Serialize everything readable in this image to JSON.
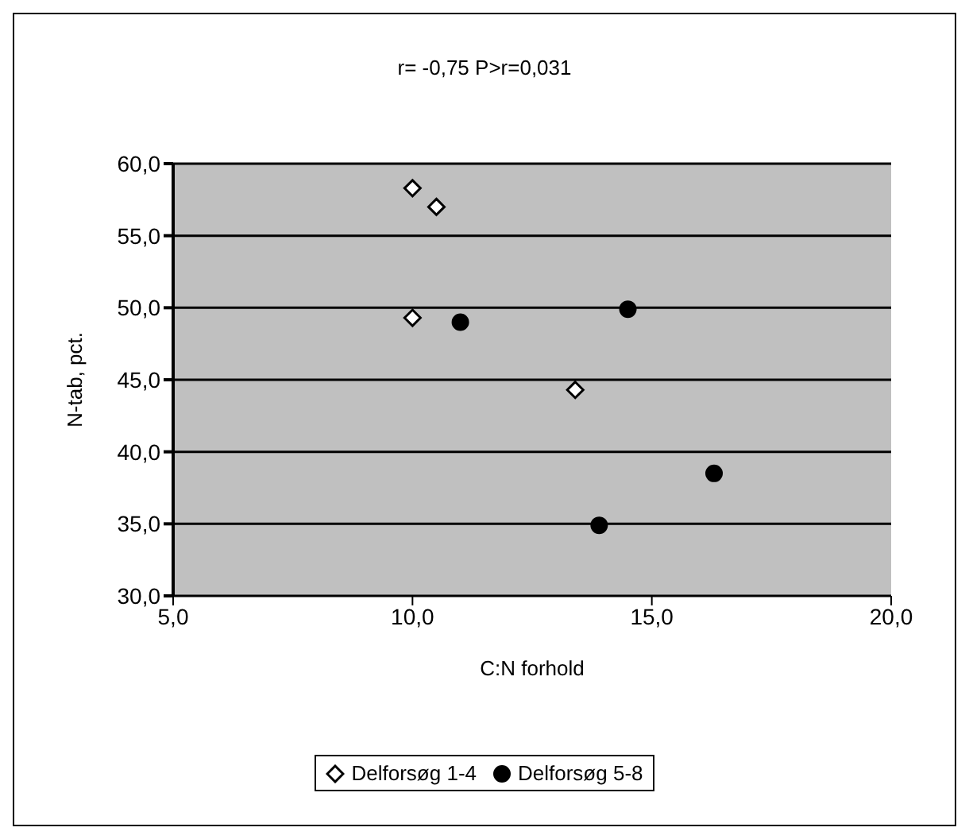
{
  "chart_data": {
    "type": "scatter",
    "title": "r= -0,75  P>r=0,031",
    "xlabel": "C:N forhold",
    "ylabel": "N-tab, pct.",
    "series": [
      {
        "name": "Delforsøg 1-4",
        "color": "#ffffff",
        "marker": "diamond",
        "x": [
          10.0,
          10.5,
          10.0,
          13.4
        ],
        "values": [
          58.3,
          57.0,
          49.3,
          44.3
        ]
      },
      {
        "name": "Delforsøg 5-8",
        "color": "#000000",
        "marker": "circle",
        "x": [
          11.0,
          14.5,
          13.9,
          16.3
        ],
        "values": [
          49.0,
          49.9,
          34.9,
          38.5
        ]
      }
    ],
    "xlim": [
      5,
      20
    ],
    "xticks": [
      {
        "value": 5,
        "label": "5,0"
      },
      {
        "value": 10,
        "label": "10,0"
      },
      {
        "value": 15,
        "label": "15,0"
      },
      {
        "value": 20,
        "label": "20,0"
      }
    ],
    "ylim": [
      30,
      60
    ],
    "yticks": [
      {
        "value": 30,
        "label": "30,0"
      },
      {
        "value": 35,
        "label": "35,0"
      },
      {
        "value": 40,
        "label": "40,0"
      },
      {
        "value": 45,
        "label": "45,0"
      },
      {
        "value": 50,
        "label": "50,0"
      },
      {
        "value": 55,
        "label": "55,0"
      },
      {
        "value": 60,
        "label": "60,0"
      }
    ],
    "grid": "y",
    "legend": "bottom"
  }
}
